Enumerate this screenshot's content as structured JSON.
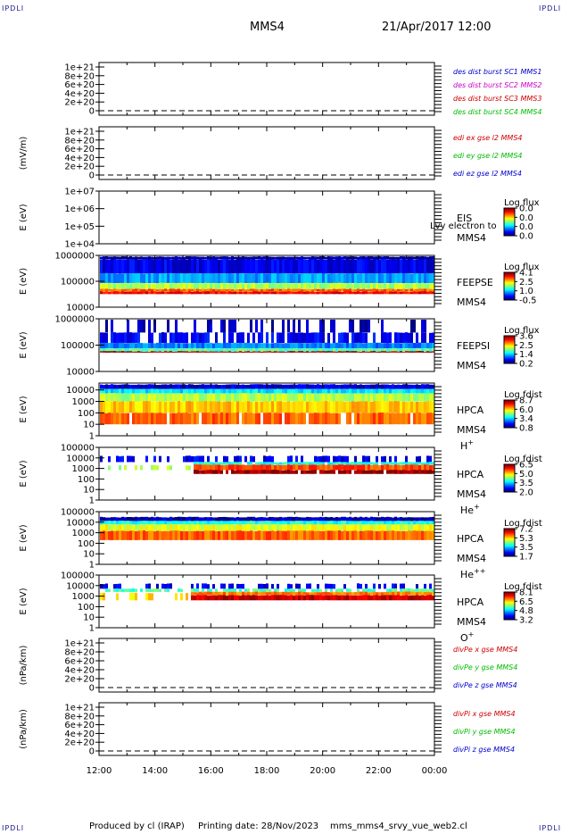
{
  "corners": {
    "tl": "IPDLI",
    "tr": "IPDLI",
    "bl": "IPDLI",
    "br": "IPDLI"
  },
  "header": {
    "spacecraft": "MMS4",
    "datetime": "21/Apr/2017 12:00"
  },
  "footer": {
    "produced": "Produced by cl (IRAP)",
    "printing": "Printing date: 28/Nov/2023",
    "file": "mms_mms4_srvy_vue_web2.cl"
  },
  "colors": {
    "frame": "#000000",
    "dash": "#000000"
  },
  "chart_data": [
    {
      "type": "line",
      "panel": "des-dist-burst",
      "ylabel": "",
      "yticks": [
        "0",
        "2e+20",
        "4e+20",
        "6e+20",
        "8e+20",
        "1e+21"
      ],
      "ylim": [
        0,
        1e+21
      ],
      "dashed_zero": true,
      "series": [
        {
          "name": "des dist burst SC1 MMS1",
          "color": "#0000cc",
          "values": []
        },
        {
          "name": "des dist burst SC2 MMS2",
          "color": "#cc00cc",
          "values": []
        },
        {
          "name": "des dist burst SC3 MMS3",
          "color": "#cc0000",
          "values": []
        },
        {
          "name": "des dist burst SC4 MMS4",
          "color": "#00bb00",
          "values": []
        }
      ]
    },
    {
      "type": "line",
      "panel": "edi-e",
      "ylabel": "(mV/m)",
      "yticks": [
        "0",
        "2e+20",
        "4e+20",
        "6e+20",
        "8e+20",
        "1e+21"
      ],
      "ylim": [
        0,
        1e+21
      ],
      "dashed_zero": true,
      "series": [
        {
          "name": "edi ex gse l2 MMS4",
          "color": "#cc0000",
          "values": []
        },
        {
          "name": "edi ey gse l2 MMS4",
          "color": "#00bb00",
          "values": []
        },
        {
          "name": "edi ez gse l2 MMS4",
          "color": "#0000cc",
          "values": []
        }
      ]
    },
    {
      "type": "heatmap",
      "panel": "eis",
      "ylabel": "E (eV)",
      "yticks": [
        "1e+04",
        "1e+05",
        "1e+06",
        "1e+07"
      ],
      "ylim": [
        10000,
        10000000
      ],
      "scale": "log",
      "labels": [
        "EIS",
        "MMS4"
      ],
      "overlay_text": "Lvy electron to",
      "colorbar": {
        "title": "Log flux",
        "ticks": [
          "0.0",
          "0.0",
          "0.0",
          "0.0"
        ]
      },
      "bands": []
    },
    {
      "type": "heatmap",
      "panel": "feepse",
      "ylabel": "E (eV)",
      "yticks": [
        "10000",
        "100000",
        "1000000"
      ],
      "ylim": [
        10000,
        1000000
      ],
      "scale": "log",
      "labels": [
        "FEEPSE",
        "MMS4"
      ],
      "colorbar": {
        "title": "Log flux",
        "ticks": [
          "4.1",
          "2.5",
          "1.0",
          "-0.5"
        ]
      },
      "bands": [
        {
          "from": 700000,
          "to": 900000,
          "level": 0.02,
          "density": 1.0,
          "x0": 0,
          "x1": 12
        },
        {
          "from": 200000,
          "to": 700000,
          "level": 0.1,
          "density": 1.0,
          "x0": 0,
          "x1": 12
        },
        {
          "from": 85000,
          "to": 200000,
          "level": 0.28,
          "density": 1.0,
          "x0": 0,
          "x1": 12
        },
        {
          "from": 50000,
          "to": 85000,
          "level": 0.55,
          "density": 1.0,
          "x0": 0,
          "x1": 12
        },
        {
          "from": 40000,
          "to": 50000,
          "level": 0.78,
          "density": 1.0,
          "x0": 0,
          "x1": 12
        },
        {
          "from": 32000,
          "to": 40000,
          "level": 0.88,
          "density": 1.0,
          "x0": 0,
          "x1": 12
        }
      ]
    },
    {
      "type": "heatmap",
      "panel": "feepsi",
      "ylabel": "E (eV)",
      "yticks": [
        "10000",
        "100000",
        "1000000"
      ],
      "ylim": [
        10000,
        1000000
      ],
      "scale": "log",
      "labels": [
        "FEEPSI",
        "MMS4"
      ],
      "colorbar": {
        "title": "Log flux",
        "ticks": [
          "3.6",
          "2.5",
          "1.4",
          "0.2"
        ]
      },
      "bands": [
        {
          "from": 300000,
          "to": 1000000,
          "level": 0.05,
          "density": 0.35,
          "x0": 0,
          "x1": 12
        },
        {
          "from": 120000,
          "to": 300000,
          "level": 0.12,
          "density": 0.75,
          "x0": 0,
          "x1": 12
        },
        {
          "from": 75000,
          "to": 120000,
          "level": 0.25,
          "density": 1.0,
          "x0": 0,
          "x1": 12
        },
        {
          "from": 58000,
          "to": 75000,
          "level": 0.45,
          "density": 1.0,
          "x0": 0,
          "x1": 12
        },
        {
          "from": 52000,
          "to": 58000,
          "level": 0.95,
          "density": 1.0,
          "x0": 0,
          "x1": 12
        }
      ]
    },
    {
      "type": "heatmap",
      "panel": "hpca-h",
      "ylabel": "E (eV)",
      "yticks": [
        "1",
        "10",
        "100",
        "1000",
        "10000"
      ],
      "ylim": [
        1,
        40000
      ],
      "scale": "log",
      "labels": [
        "HPCA",
        "MMS4",
        "H+"
      ],
      "colorbar": {
        "title": "Log fdist",
        "ticks": [
          "8.7",
          "6.0",
          "3.4",
          "0.8"
        ]
      },
      "bands": [
        {
          "from": 12000,
          "to": 30000,
          "level": 0.08,
          "density": 1.0,
          "x0": 0,
          "x1": 12
        },
        {
          "from": 5000,
          "to": 12000,
          "level": 0.35,
          "density": 1.0,
          "x0": 0,
          "x1": 12
        },
        {
          "from": 1000,
          "to": 5000,
          "level": 0.55,
          "density": 1.0,
          "x0": 0,
          "x1": 12
        },
        {
          "from": 100,
          "to": 1000,
          "level": 0.68,
          "density": 1.0,
          "x0": 0,
          "x1": 12
        },
        {
          "from": 10,
          "to": 100,
          "level": 0.78,
          "density": 0.9,
          "x0": 0,
          "x1": 12
        }
      ]
    },
    {
      "type": "heatmap",
      "panel": "hpca-he",
      "ylabel": "E (eV)",
      "yticks": [
        "1",
        "10",
        "100",
        "1000",
        "10000",
        "100000"
      ],
      "ylim": [
        1,
        100000
      ],
      "scale": "log",
      "labels": [
        "HPCA",
        "MMS4",
        "He+"
      ],
      "colorbar": {
        "title": "Log fdist",
        "ticks": [
          "6.5",
          "5.0",
          "3.5",
          "2.0"
        ]
      },
      "bands": [
        {
          "from": 4000,
          "to": 15000,
          "level": 0.1,
          "density": 0.5,
          "x0": 0,
          "x1": 12
        },
        {
          "from": 2200,
          "to": 4000,
          "level": 0.4,
          "density": 0.9,
          "x0": 3.3,
          "x1": 12
        },
        {
          "from": 700,
          "to": 2200,
          "level": 0.8,
          "density": 1.0,
          "x0": 3.3,
          "x1": 12
        },
        {
          "from": 300,
          "to": 700,
          "level": 0.98,
          "density": 0.9,
          "x0": 3.3,
          "x1": 12
        },
        {
          "from": 700,
          "to": 2000,
          "level": 0.55,
          "density": 0.3,
          "x0": 0,
          "x1": 3.3
        }
      ]
    },
    {
      "type": "heatmap",
      "panel": "hpca-he2",
      "ylabel": "E (eV)",
      "yticks": [
        "1",
        "10",
        "100",
        "1000",
        "10000",
        "100000"
      ],
      "ylim": [
        1,
        100000
      ],
      "scale": "log",
      "labels": [
        "HPCA",
        "MMS4",
        "He++"
      ],
      "colorbar": {
        "title": "Log fdist",
        "ticks": [
          "7.2",
          "5.3",
          "3.5",
          "1.7"
        ]
      },
      "bands": [
        {
          "from": 13000,
          "to": 30000,
          "level": 0.05,
          "density": 1.0,
          "x0": 0,
          "x1": 12
        },
        {
          "from": 6000,
          "to": 13000,
          "level": 0.4,
          "density": 1.0,
          "x0": 0,
          "x1": 12
        },
        {
          "from": 1500,
          "to": 6000,
          "level": 0.6,
          "density": 1.0,
          "x0": 0,
          "x1": 12
        },
        {
          "from": 200,
          "to": 1500,
          "level": 0.78,
          "density": 1.0,
          "x0": 0,
          "x1": 12
        }
      ]
    },
    {
      "type": "heatmap",
      "panel": "hpca-o",
      "ylabel": "E (eV)",
      "yticks": [
        "1",
        "10",
        "100",
        "1000",
        "10000",
        "100000"
      ],
      "ylim": [
        1,
        100000
      ],
      "scale": "log",
      "labels": [
        "HPCA",
        "MMS4",
        "O+"
      ],
      "colorbar": {
        "title": "Log fdist",
        "ticks": [
          "8.1",
          "6.5",
          "4.8",
          "3.2"
        ]
      },
      "bands": [
        {
          "from": 5000,
          "to": 15000,
          "level": 0.1,
          "density": 0.55,
          "x0": 0,
          "x1": 12
        },
        {
          "from": 2500,
          "to": 5000,
          "level": 0.45,
          "density": 0.7,
          "x0": 0,
          "x1": 12
        },
        {
          "from": 1200,
          "to": 2500,
          "level": 0.75,
          "density": 1.0,
          "x0": 3.2,
          "x1": 12
        },
        {
          "from": 400,
          "to": 1200,
          "level": 0.93,
          "density": 1.0,
          "x0": 3.2,
          "x1": 12
        },
        {
          "from": 400,
          "to": 2000,
          "level": 0.65,
          "density": 0.35,
          "x0": 0,
          "x1": 3.2
        }
      ]
    },
    {
      "type": "line",
      "panel": "divpe",
      "ylabel": "(nPa/km)",
      "yticks": [
        "0",
        "2e+20",
        "4e+20",
        "6e+20",
        "8e+20",
        "1e+21"
      ],
      "ylim": [
        0,
        1e+21
      ],
      "dashed_zero": true,
      "series": [
        {
          "name": "divPe x gse MMS4",
          "color": "#cc0000",
          "values": []
        },
        {
          "name": "divPe y gse MMS4",
          "color": "#00bb00",
          "values": []
        },
        {
          "name": "divPe z gse MMS4",
          "color": "#0000cc",
          "values": []
        }
      ]
    },
    {
      "type": "line",
      "panel": "divpi",
      "ylabel": "(nPa/km)",
      "yticks": [
        "0",
        "2e+20",
        "4e+20",
        "6e+20",
        "8e+20",
        "1e+21"
      ],
      "ylim": [
        0,
        1e+21
      ],
      "dashed_zero": true,
      "series": [
        {
          "name": "divPi x gse MMS4",
          "color": "#cc0000",
          "values": []
        },
        {
          "name": "divPi y gse MMS4",
          "color": "#00bb00",
          "values": []
        },
        {
          "name": "divPi z gse MMS4",
          "color": "#0000cc",
          "values": []
        }
      ]
    }
  ],
  "x_axis": {
    "ticks": [
      "12:00",
      "14:00",
      "16:00",
      "18:00",
      "20:00",
      "22:00",
      "00:00"
    ],
    "range_hours": [
      0,
      12
    ]
  }
}
